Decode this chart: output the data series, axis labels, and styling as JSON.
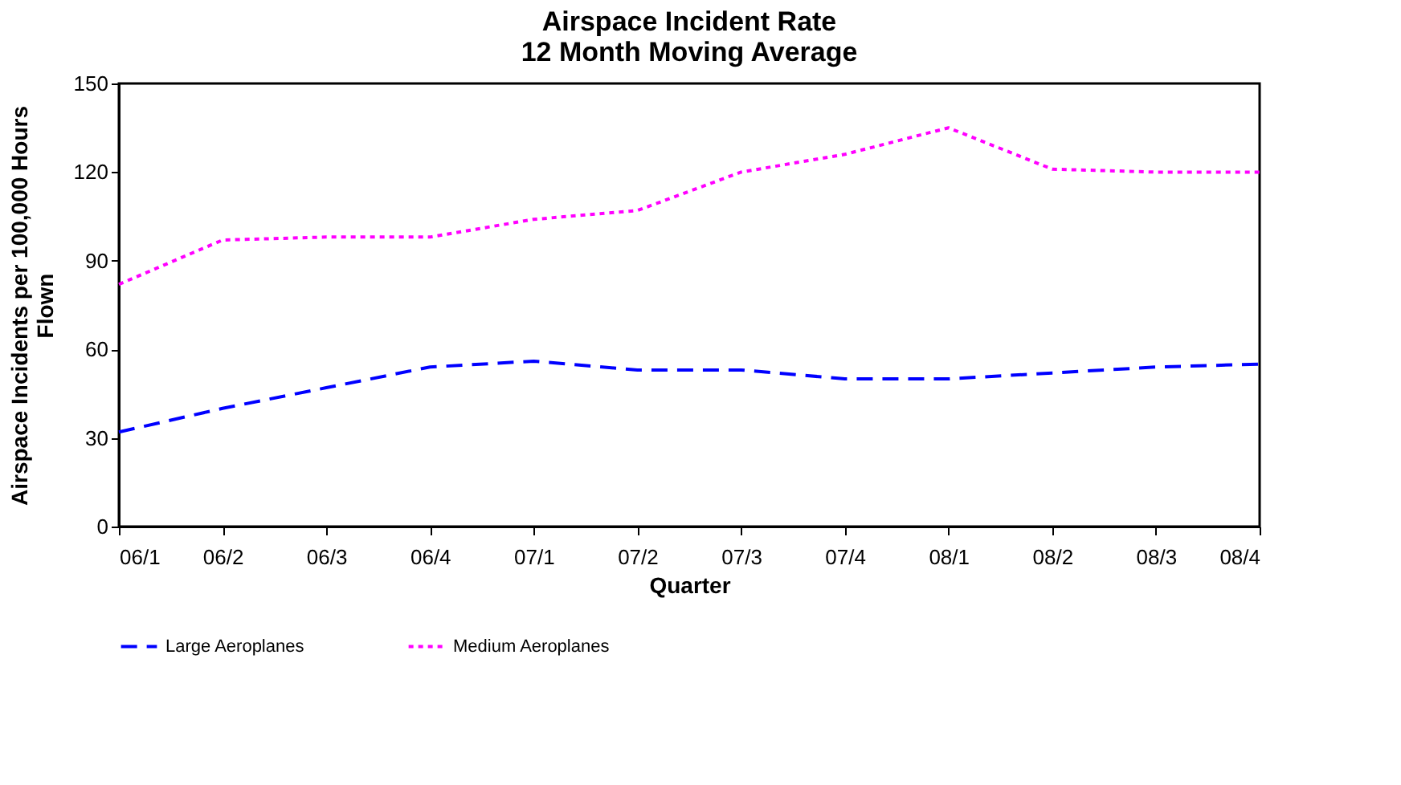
{
  "chart_data": {
    "type": "line",
    "title": "Airspace Incident Rate\n12 Month Moving Average",
    "xlabel": "Quarter",
    "ylabel": "Airspace Incidents per 100,000 Hours\nFlown",
    "categories": [
      "06/1",
      "06/2",
      "06/3",
      "06/4",
      "07/1",
      "07/2",
      "07/3",
      "07/4",
      "08/1",
      "08/2",
      "08/3",
      "08/4"
    ],
    "series": [
      {
        "name": "Large Aeroplanes",
        "color": "#0000ff",
        "line_style": "dashed",
        "values": [
          32,
          40,
          47,
          54,
          56,
          53,
          53,
          50,
          50,
          52,
          54,
          55
        ]
      },
      {
        "name": "Medium Aeroplanes",
        "color": "#ff00ff",
        "line_style": "dotted",
        "values": [
          82,
          97,
          98,
          98,
          104,
          107,
          120,
          126,
          135,
          121,
          120,
          120
        ]
      }
    ],
    "ylim": [
      0,
      150
    ],
    "yticks": [
      0,
      30,
      60,
      90,
      120,
      150
    ],
    "grid": false,
    "legend": "bottom",
    "marker": "none"
  }
}
